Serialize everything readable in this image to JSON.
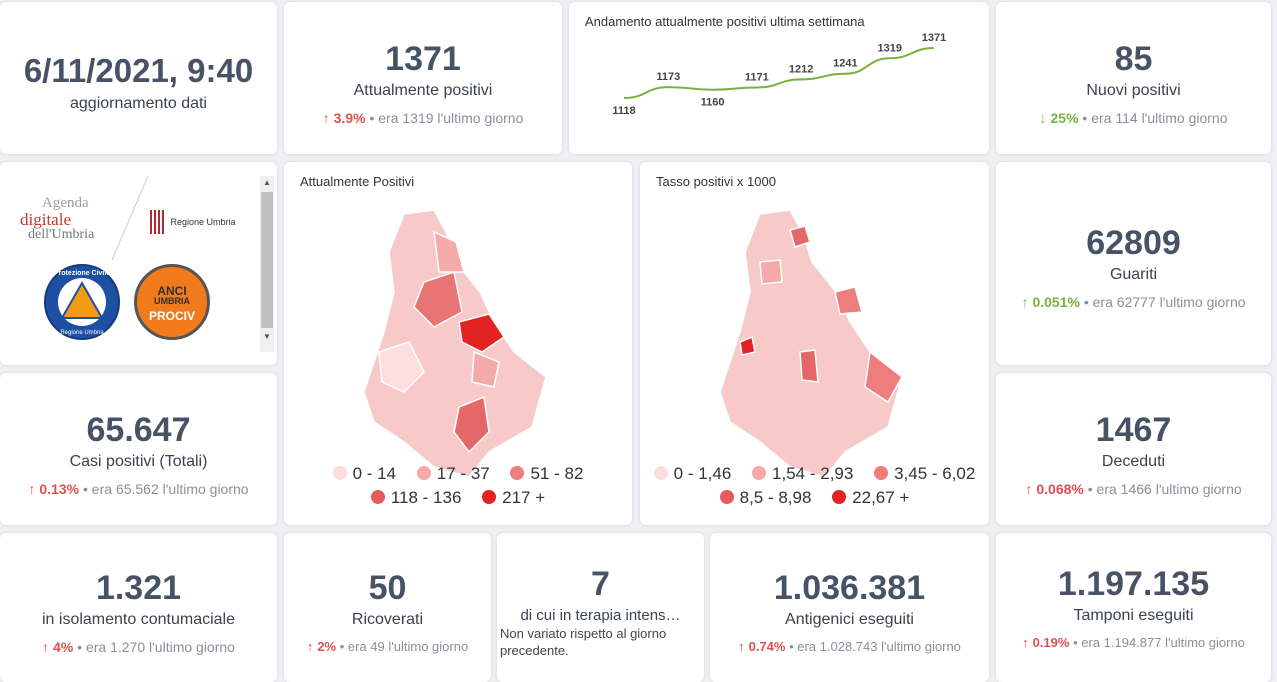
{
  "update": {
    "datetime": "6/11/2021, 9:40",
    "label": "aggiornamento dati"
  },
  "positivi": {
    "value": "1371",
    "label": "Attualmente positivi",
    "pct": "3.9%",
    "prev": "era 1319",
    "suffix": "l'ultimo giorno"
  },
  "trend": {
    "title": "Andamento attualmente positivi ultima settimana",
    "values": [
      "1118",
      "1173",
      "1160",
      "1171",
      "1212",
      "1241",
      "1319",
      "1371"
    ],
    "color": "#7ab040"
  },
  "nuovi": {
    "value": "85",
    "label": "Nuovi positivi",
    "pct": "25%",
    "prev": "era 114",
    "suffix": "l'ultimo giorno"
  },
  "logos": {
    "agenda_line1": "Agenda",
    "agenda_line2": "digitale",
    "agenda_line3": "dell'Umbria",
    "regione": "Regione Umbria",
    "protezione": "Protezione Civile",
    "protezione_sub": "Regione Umbria",
    "anci_line1": "ANCI",
    "anci_line2": "UMBRIA",
    "anci_line3": "PROCIV"
  },
  "map1": {
    "title": "Attualmente Positivi",
    "legend": [
      "0 - 14",
      "17 - 37",
      "51 - 82",
      "118 - 136",
      "217 +"
    ]
  },
  "map2": {
    "title": "Tasso positivi x 1000",
    "legend": [
      "0 - 1,46",
      "1,54 - 2,93",
      "3,45 - 6,02",
      "8,5 - 8,98",
      "22,67 +"
    ]
  },
  "legend_colors": [
    "#fcdcdc",
    "#f5a9a9",
    "#ee7d7d",
    "#e65b5b",
    "#e32222"
  ],
  "guariti": {
    "value": "62809",
    "label": "Guariti",
    "pct": "0.051%",
    "prev": "era 62777",
    "suffix": "l'ultimo giorno"
  },
  "casi": {
    "value": "65.647",
    "label": "Casi positivi (Totali)",
    "pct": "0.13%",
    "prev": "era 65.562",
    "suffix": "l'ultimo giorno"
  },
  "deceduti": {
    "value": "1467",
    "label": "Deceduti",
    "pct": "0.068%",
    "prev": "era 1466",
    "suffix": "l'ultimo giorno"
  },
  "isolamento": {
    "value": "1.321",
    "label": "in isolamento contumaciale",
    "pct": "4%",
    "prev": "era 1.270",
    "suffix": "l'ultimo giorno"
  },
  "ricoverati": {
    "value": "50",
    "label": "Ricoverati",
    "pct": "2%",
    "prev": "era 49",
    "suffix": "l'ultimo giorno"
  },
  "terapia": {
    "value": "7",
    "label": "di cui in terapia intens…",
    "note": "Non variato rispetto al giorno precedente."
  },
  "antigenici": {
    "value": "1.036.381",
    "label": "Antigenici eseguiti",
    "pct": "0.74%",
    "prev": "era 1.028.743",
    "suffix": "l'ultimo giorno"
  },
  "tamponi": {
    "value": "1.197.135",
    "label": "Tamponi eseguiti",
    "pct": "0.19%",
    "prev": "era 1.194.877",
    "suffix": "l'ultimo giorno"
  }
}
